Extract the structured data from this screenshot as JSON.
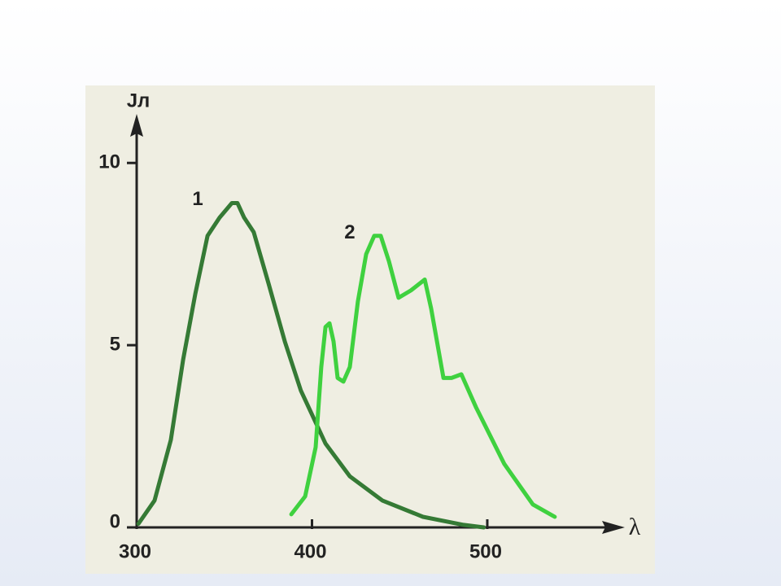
{
  "chart_data": {
    "type": "line",
    "y_label": "Jл",
    "x_label": "λ",
    "xlim": [
      300,
      575
    ],
    "ylim": [
      0,
      11.3
    ],
    "xticks": [
      300,
      400,
      500
    ],
    "yticks": [
      0,
      5,
      10
    ],
    "series": [
      {
        "name": "1",
        "color": "#357a35",
        "x": [
          301,
          310.2,
          319.5,
          326.5,
          333.4,
          340.4,
          347.3,
          354.3,
          357.5,
          361.3,
          366.8,
          375.2,
          384.5,
          393.7,
          407.7,
          421.6,
          440.1,
          463.3,
          486.5,
          498
        ],
        "values": [
          0.1,
          0.74,
          2.4,
          4.6,
          6.4,
          8.0,
          8.5,
          8.9,
          8.9,
          8.5,
          8.1,
          6.7,
          5.1,
          3.75,
          2.3,
          1.4,
          0.74,
          0.29,
          0.07,
          0
        ]
      },
      {
        "name": "2",
        "color": "#3fd13f",
        "x": [
          388.2,
          396.1,
          402.1,
          405.3,
          407.7,
          410,
          412.3,
          414.6,
          417.9,
          421.6,
          426.2,
          430.9,
          435.5,
          439.2,
          443.9,
          449.4,
          456.4,
          464.3,
          468,
          475,
          479.6,
          485.2,
          493.5,
          509.7,
          526,
          538.5
        ],
        "values": [
          0.36,
          0.85,
          2.2,
          4.4,
          5.5,
          5.6,
          5.1,
          4.1,
          4.0,
          4.4,
          6.2,
          7.5,
          8.0,
          8.0,
          7.3,
          6.3,
          6.5,
          6.8,
          6.0,
          4.1,
          4.1,
          4.2,
          3.3,
          1.74,
          0.63,
          0.29
        ]
      }
    ]
  }
}
